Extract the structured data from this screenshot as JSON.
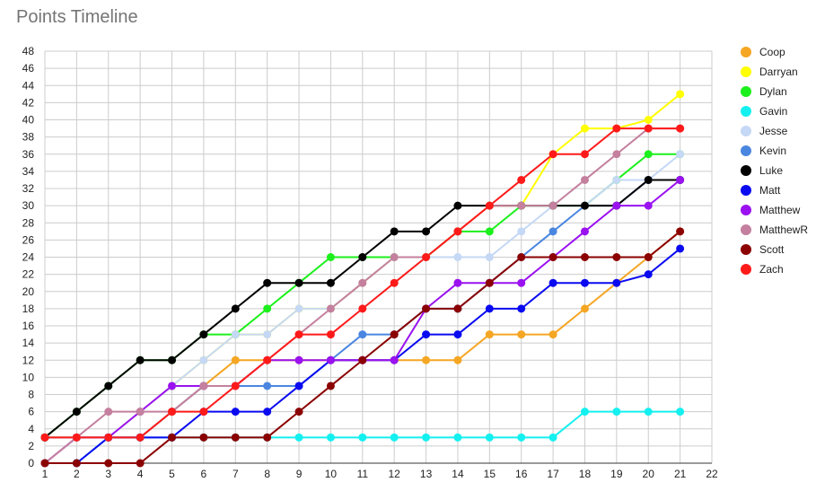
{
  "chart_data": {
    "type": "line",
    "title": "Points Timeline",
    "xlabel": "",
    "ylabel": "",
    "xlim": [
      1,
      22
    ],
    "ylim": [
      0,
      48
    ],
    "x_ticks": [
      1,
      2,
      3,
      4,
      5,
      6,
      7,
      8,
      9,
      10,
      11,
      12,
      13,
      14,
      15,
      16,
      17,
      18,
      19,
      20,
      21,
      22
    ],
    "y_ticks": [
      0,
      2,
      4,
      6,
      8,
      10,
      12,
      14,
      16,
      18,
      20,
      22,
      24,
      26,
      28,
      30,
      32,
      34,
      36,
      38,
      40,
      42,
      44,
      46,
      48
    ],
    "grid": true,
    "legend_position": "right",
    "x": [
      1,
      2,
      3,
      4,
      5,
      6,
      7,
      8,
      9,
      10,
      11,
      12,
      13,
      14,
      15,
      16,
      17,
      18,
      19,
      20,
      21
    ],
    "series": [
      {
        "name": "Coop",
        "color": "#f5a623",
        "values": [
          3,
          3,
          3,
          3,
          6,
          9,
          12,
          12,
          12,
          12,
          12,
          12,
          12,
          12,
          15,
          15,
          15,
          18,
          21,
          24,
          27
        ]
      },
      {
        "name": "Darryan",
        "color": "#ffff00",
        "values": [
          3,
          3,
          3,
          6,
          9,
          12,
          15,
          15,
          18,
          18,
          21,
          24,
          24,
          27,
          30,
          30,
          36,
          39,
          39,
          40,
          43
        ]
      },
      {
        "name": "Dylan",
        "color": "#1cf01c",
        "values": [
          3,
          6,
          9,
          12,
          12,
          15,
          15,
          18,
          21,
          24,
          24,
          24,
          24,
          27,
          27,
          30,
          30,
          30,
          33,
          36,
          36
        ]
      },
      {
        "name": "Gavin",
        "color": "#14f0f0",
        "values": [
          0,
          0,
          3,
          3,
          3,
          3,
          3,
          3,
          3,
          3,
          3,
          3,
          3,
          3,
          3,
          3,
          3,
          6,
          6,
          6,
          6
        ]
      },
      {
        "name": "Jesse",
        "color": "#c5d8f5",
        "values": [
          3,
          3,
          3,
          6,
          9,
          12,
          15,
          15,
          18,
          18,
          21,
          24,
          24,
          24,
          24,
          27,
          30,
          30,
          33,
          33,
          36
        ]
      },
      {
        "name": "Kevin",
        "color": "#4a86e0",
        "values": [
          3,
          3,
          3,
          3,
          6,
          9,
          9,
          9,
          9,
          12,
          15,
          15,
          18,
          18,
          21,
          24,
          27,
          30,
          30,
          33,
          33
        ]
      },
      {
        "name": "Luke",
        "color": "#000000",
        "values": [
          3,
          6,
          9,
          12,
          12,
          15,
          18,
          21,
          21,
          21,
          24,
          27,
          27,
          30,
          30,
          30,
          30,
          30,
          30,
          33,
          33
        ]
      },
      {
        "name": "Matt",
        "color": "#0a0af0",
        "values": [
          0,
          0,
          3,
          3,
          3,
          6,
          6,
          6,
          9,
          12,
          12,
          12,
          15,
          15,
          18,
          18,
          21,
          21,
          21,
          22,
          25
        ]
      },
      {
        "name": "Matthew",
        "color": "#9a12f0",
        "values": [
          0,
          3,
          3,
          6,
          9,
          9,
          9,
          12,
          12,
          12,
          12,
          12,
          18,
          21,
          21,
          21,
          24,
          27,
          30,
          30,
          33
        ]
      },
      {
        "name": "MatthewR",
        "color": "#c4809e",
        "values": [
          0,
          3,
          6,
          6,
          6,
          9,
          9,
          12,
          15,
          18,
          21,
          24,
          24,
          27,
          30,
          30,
          30,
          33,
          36,
          39,
          39
        ]
      },
      {
        "name": "Scott",
        "color": "#8b0000",
        "values": [
          0,
          0,
          0,
          0,
          3,
          3,
          3,
          3,
          6,
          9,
          12,
          15,
          18,
          18,
          21,
          24,
          24,
          24,
          24,
          24,
          27
        ]
      },
      {
        "name": "Zach",
        "color": "#ff1a1a",
        "values": [
          3,
          3,
          3,
          3,
          6,
          6,
          9,
          12,
          15,
          15,
          18,
          21,
          24,
          27,
          30,
          33,
          36,
          36,
          39,
          39,
          39
        ]
      }
    ]
  }
}
